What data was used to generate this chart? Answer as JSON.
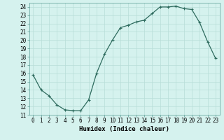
{
  "x": [
    0,
    1,
    2,
    3,
    4,
    5,
    6,
    7,
    8,
    9,
    10,
    11,
    12,
    13,
    14,
    15,
    16,
    17,
    18,
    19,
    20,
    21,
    22,
    23
  ],
  "y": [
    15.8,
    14.0,
    13.3,
    12.2,
    11.6,
    11.5,
    11.5,
    12.8,
    16.0,
    18.3,
    20.0,
    21.5,
    21.8,
    22.2,
    22.4,
    23.2,
    24.0,
    24.0,
    24.1,
    23.8,
    23.7,
    22.1,
    19.8,
    17.8
  ],
  "line_color": "#2e6b5e",
  "marker": "+",
  "marker_size": 3,
  "marker_lw": 0.8,
  "line_width": 0.9,
  "bg_color": "#d5f2ee",
  "grid_color": "#b8ddd8",
  "xlabel": "Humidex (Indice chaleur)",
  "xlim": [
    -0.5,
    23.5
  ],
  "ylim": [
    11,
    24.5
  ],
  "xticks": [
    0,
    1,
    2,
    3,
    4,
    5,
    6,
    7,
    8,
    9,
    10,
    11,
    12,
    13,
    14,
    15,
    16,
    17,
    18,
    19,
    20,
    21,
    22,
    23
  ],
  "yticks": [
    11,
    12,
    13,
    14,
    15,
    16,
    17,
    18,
    19,
    20,
    21,
    22,
    23,
    24
  ],
  "tick_fontsize": 5.5,
  "xlabel_fontsize": 6.5,
  "spine_color": "#5a9e96"
}
